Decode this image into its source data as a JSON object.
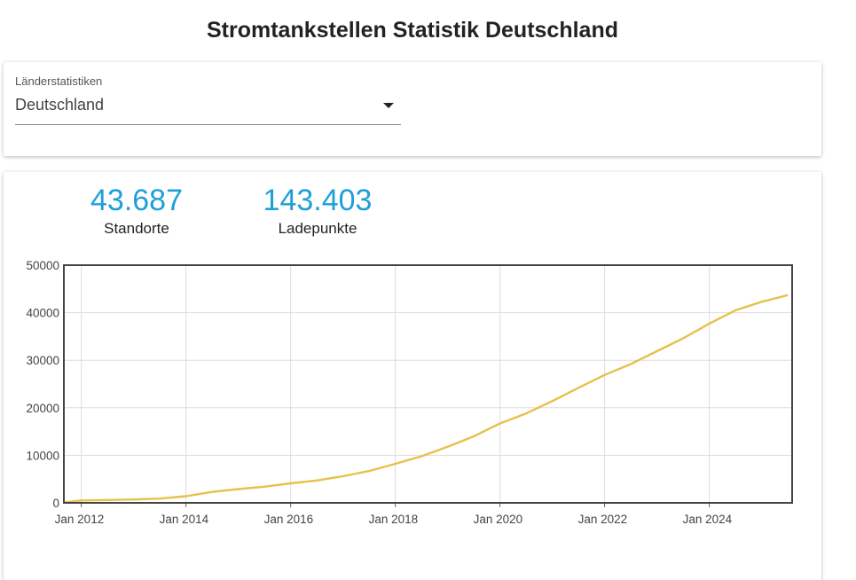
{
  "page": {
    "title": "Stromtankstellen Statistik Deutschland"
  },
  "selector": {
    "label": "Länderstatistiken",
    "value": "Deutschland"
  },
  "stats": [
    {
      "value": "43.687",
      "label": "Standorte"
    },
    {
      "value": "143.403",
      "label": "Ladepunkte"
    }
  ],
  "colors": {
    "accent": "#1e9fd9",
    "line": "#e6c14c",
    "grid": "#dddddd",
    "frame": "#444444"
  },
  "chart_data": {
    "type": "line",
    "title": "",
    "xlabel": "",
    "ylabel": "",
    "xlim": [
      "2011-09",
      "2025-08"
    ],
    "ylim": [
      0,
      50000
    ],
    "y_ticks": [
      0,
      10000,
      20000,
      30000,
      40000,
      50000
    ],
    "x_ticks": [
      {
        "date": "2012-01",
        "label": "Jan 2012"
      },
      {
        "date": "2014-01",
        "label": "Jan 2014"
      },
      {
        "date": "2016-01",
        "label": "Jan 2016"
      },
      {
        "date": "2018-01",
        "label": "Jan 2018"
      },
      {
        "date": "2020-01",
        "label": "Jan 2020"
      },
      {
        "date": "2022-01",
        "label": "Jan 2022"
      },
      {
        "date": "2024-01",
        "label": "Jan 2024"
      }
    ],
    "grid": true,
    "series": [
      {
        "x": [
          "2011-09",
          "2012-01",
          "2012-07",
          "2013-01",
          "2013-07",
          "2014-01",
          "2014-07",
          "2015-01",
          "2015-07",
          "2016-01",
          "2016-07",
          "2017-01",
          "2017-07",
          "2018-01",
          "2018-07",
          "2019-01",
          "2019-07",
          "2020-01",
          "2020-07",
          "2021-01",
          "2021-07",
          "2022-01",
          "2022-07",
          "2023-01",
          "2023-07",
          "2024-01",
          "2024-07",
          "2025-01",
          "2025-07"
        ],
        "y": [
          100,
          500,
          600,
          700,
          900,
          1400,
          2300,
          2900,
          3400,
          4100,
          4700,
          5600,
          6700,
          8200,
          9800,
          11800,
          14000,
          16700,
          18800,
          21400,
          24200,
          26900,
          29200,
          31900,
          34600,
          37700,
          40500,
          42300,
          43687
        ]
      }
    ]
  }
}
